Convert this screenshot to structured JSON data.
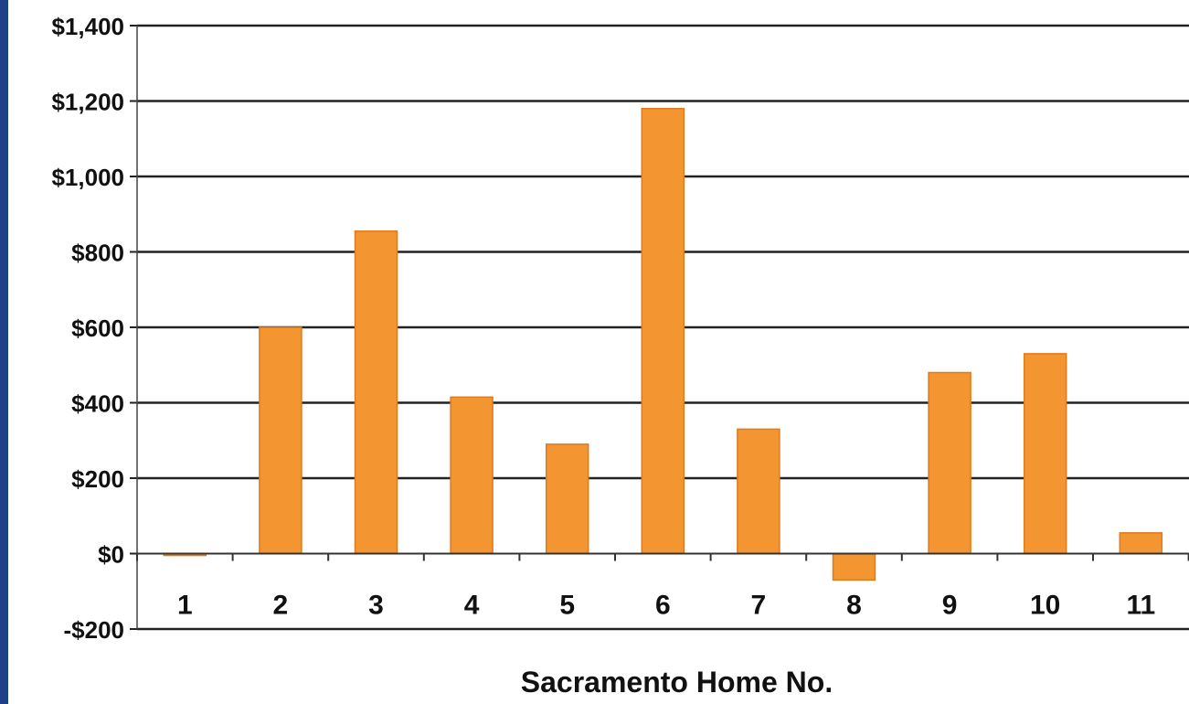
{
  "chart_data": {
    "type": "bar",
    "categories": [
      "1",
      "2",
      "3",
      "4",
      "5",
      "6",
      "7",
      "8",
      "9",
      "10",
      "11"
    ],
    "values": [
      -5,
      600,
      855,
      415,
      290,
      1180,
      330,
      -70,
      480,
      530,
      55
    ],
    "title": "",
    "xlabel": "Sacramento Home No.",
    "ylabel": "",
    "ylim": [
      -200,
      1400
    ],
    "yticks": [
      -200,
      0,
      200,
      400,
      600,
      800,
      1000,
      1200,
      1400
    ],
    "ytick_labels": [
      "-$200",
      "$0",
      "$200",
      "$400",
      "$600",
      "$800",
      "$1,000",
      "$1,200",
      "$1,400"
    ],
    "grid": true,
    "legend": "none",
    "colors": {
      "bar": "#F39631",
      "bar_edge": "#E07A1E",
      "grid": "#222222",
      "frame_left": "#1F3F86"
    }
  }
}
